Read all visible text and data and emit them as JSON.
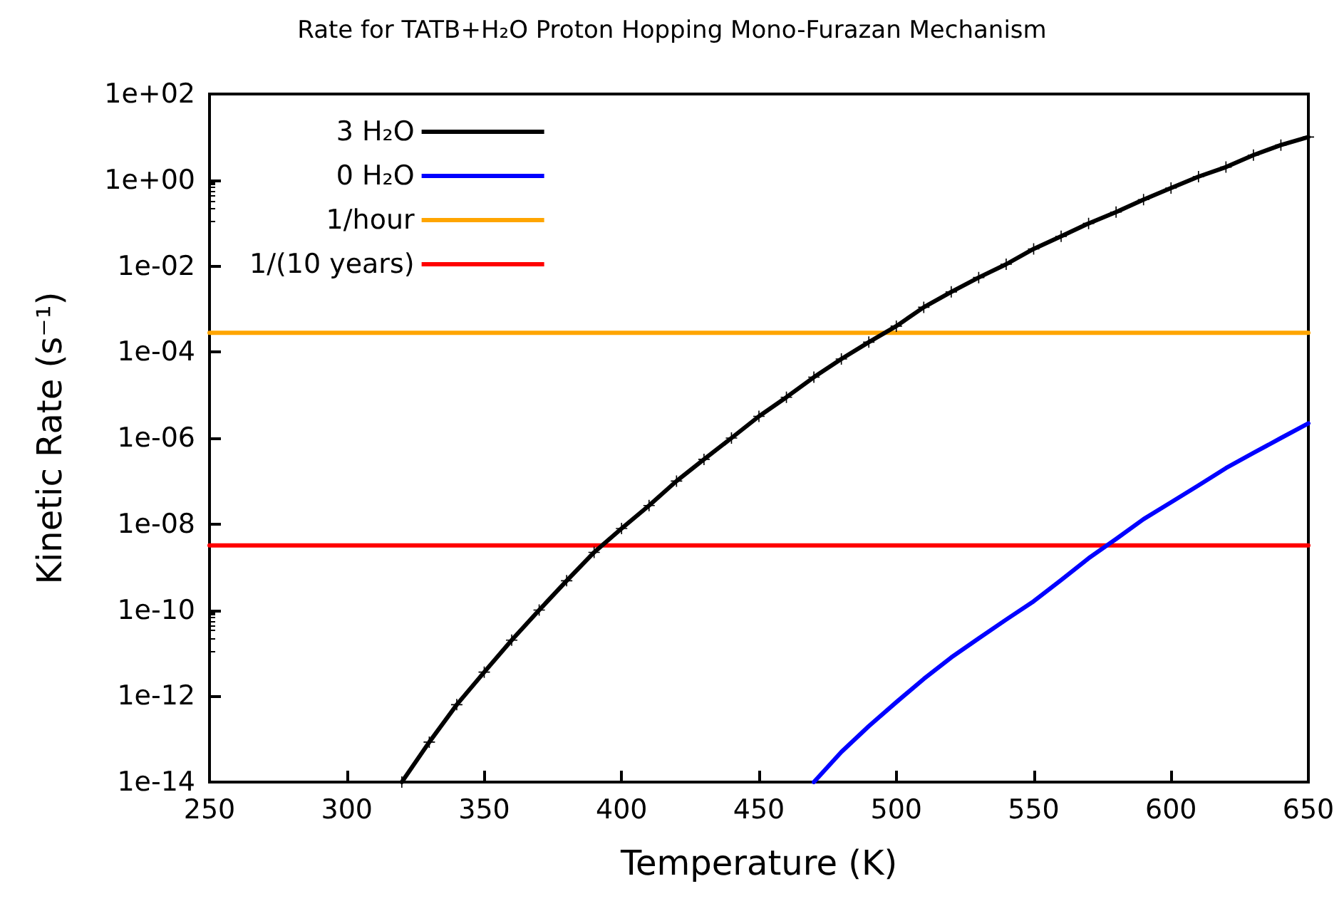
{
  "chart_data": {
    "type": "line",
    "title": "Rate for TATB+H₂O Proton Hopping Mono-Furazan Mechanism",
    "xlabel": "Temperature (K)",
    "ylabel": "Kinetic Rate (s⁻¹)",
    "log": "y",
    "grid": false,
    "legend": "top left",
    "line_style": "solid",
    "xlim": [
      250,
      650
    ],
    "xticks": [
      250,
      300,
      350,
      400,
      450,
      500,
      550,
      600,
      650
    ],
    "ylim": [
      1e-14,
      100
    ],
    "yticks": [
      {
        "value": 1e-14,
        "label": "1e-14"
      },
      {
        "value": 1e-12,
        "label": "1e-12"
      },
      {
        "value": 1e-10,
        "label": "1e-10"
      },
      {
        "value": 1e-08,
        "label": "1e-08"
      },
      {
        "value": 1e-06,
        "label": "1e-06"
      },
      {
        "value": 0.0001,
        "label": "1e-04"
      },
      {
        "value": 0.01,
        "label": "1e-02"
      },
      {
        "value": 1,
        "label": "1e+00"
      },
      {
        "value": 100,
        "label": "1e+02"
      }
    ],
    "series": [
      {
        "name": "3 H₂O",
        "color": "#000000",
        "marker": "cross",
        "x": [
          320,
          330,
          340,
          350,
          360,
          370,
          380,
          390,
          400,
          410,
          420,
          430,
          440,
          450,
          460,
          470,
          480,
          490,
          500,
          510,
          520,
          530,
          540,
          550,
          560,
          570,
          580,
          590,
          600,
          610,
          620,
          630,
          640,
          650
        ],
        "values": [
          1e-14,
          8.5e-14,
          6.3e-13,
          3.6e-12,
          2e-11,
          1e-10,
          4.8e-10,
          2.2e-09,
          7.9e-09,
          2.7e-08,
          1e-07,
          3.2e-07,
          1e-06,
          3.2e-06,
          8.9e-06,
          2.6e-05,
          6.9e-05,
          0.00017,
          0.0004,
          0.0011,
          0.0025,
          0.0054,
          0.011,
          0.025,
          0.049,
          0.098,
          0.18,
          0.35,
          0.65,
          1.2,
          2.0,
          3.8,
          6.5,
          10
        ]
      },
      {
        "name": "0 H₂O",
        "color": "#0000ff",
        "marker": "none",
        "x": [
          470,
          480,
          490,
          500,
          510,
          520,
          530,
          540,
          550,
          560,
          570,
          580,
          590,
          600,
          610,
          620,
          630,
          640,
          650
        ],
        "values": [
          1e-14,
          5e-14,
          2e-13,
          7.2e-13,
          2.5e-12,
          7.9e-12,
          2.2e-11,
          6e-11,
          1.6e-10,
          5e-10,
          1.6e-09,
          4.5e-09,
          1.3e-08,
          3.2e-08,
          7.9e-08,
          2e-07,
          4.5e-07,
          1e-06,
          2.2e-06
        ]
      },
      {
        "name": "1/hour",
        "color": "#ffa500",
        "marker": "none",
        "x": [
          250,
          650
        ],
        "values": [
          0.00028,
          0.00028
        ]
      },
      {
        "name": "1/(10 years)",
        "color": "#ff0000",
        "marker": "none",
        "x": [
          250,
          650
        ],
        "values": [
          3.2e-09,
          3.2e-09
        ]
      }
    ]
  }
}
